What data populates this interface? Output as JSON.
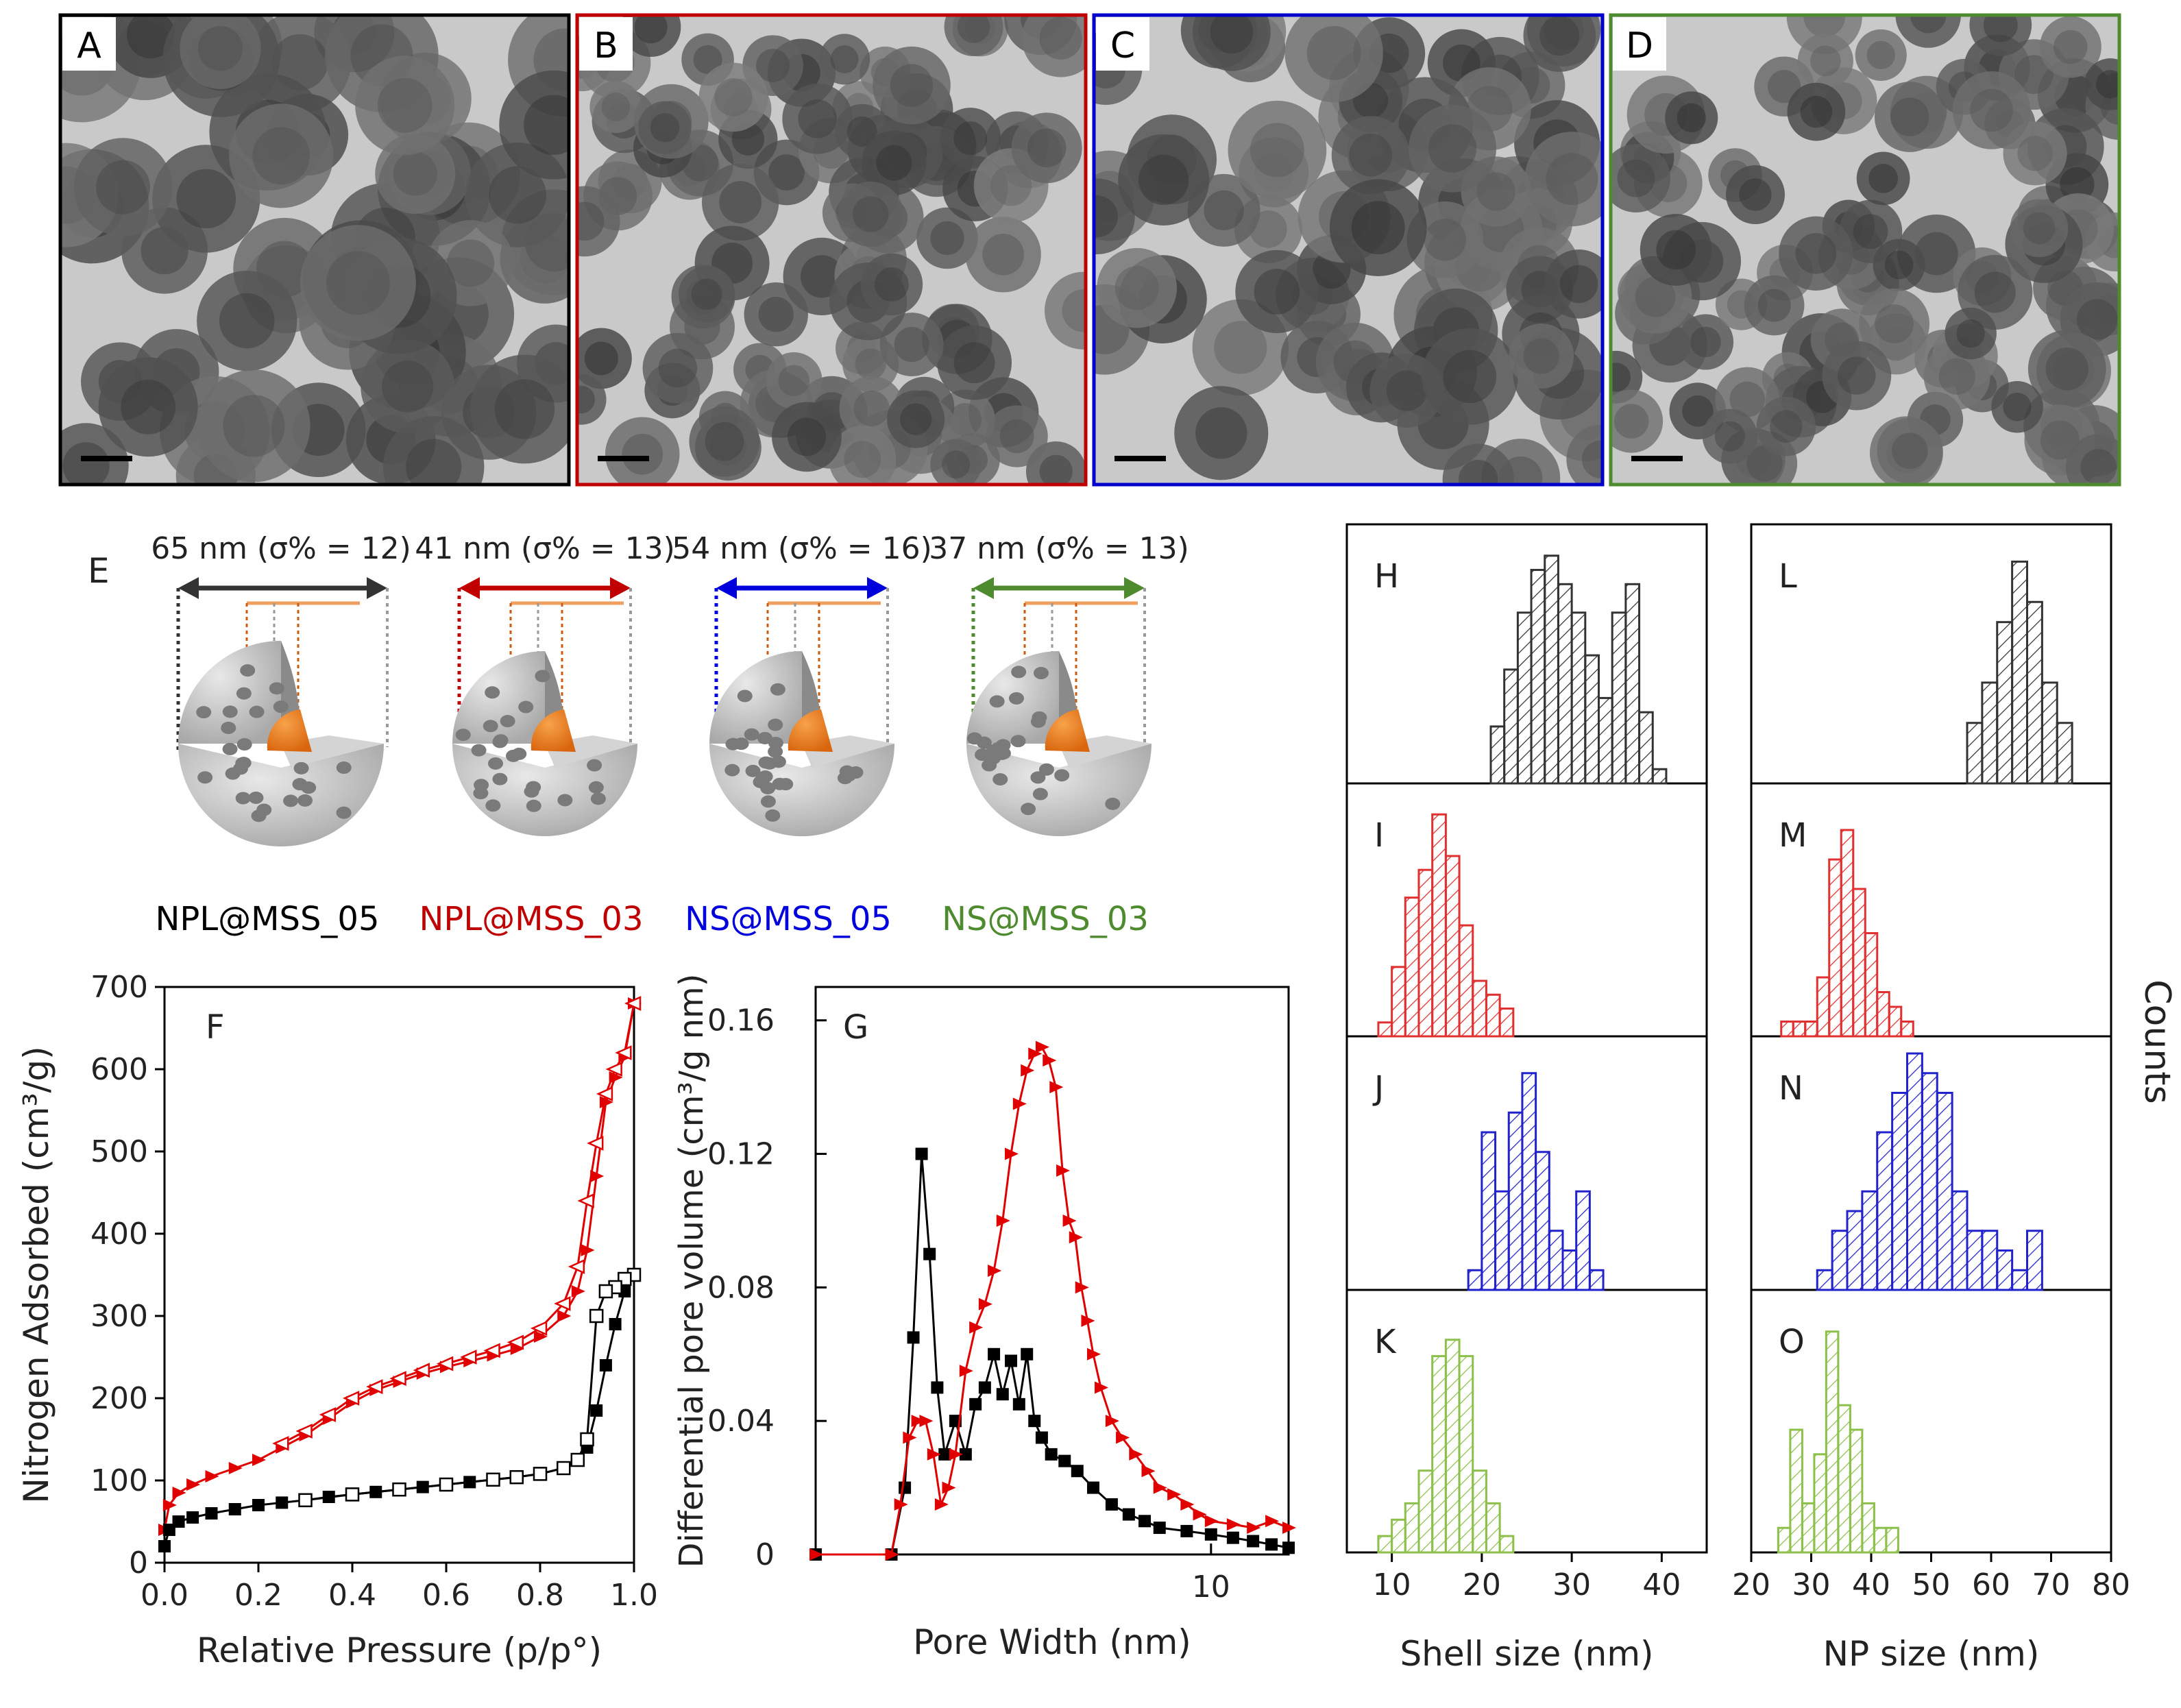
{
  "figure": {
    "tem_panels": [
      {
        "label": "A",
        "color": "#000000",
        "seed": 11,
        "style": "large"
      },
      {
        "label": "B",
        "color": "#c00000",
        "seed": 23,
        "style": "small"
      },
      {
        "label": "C",
        "color": "#0000cc",
        "seed": 37,
        "style": "medium"
      },
      {
        "label": "D",
        "color": "#4e8a2e",
        "seed": 51,
        "style": "small"
      }
    ],
    "panel_e": {
      "label": "E",
      "particles": [
        {
          "size_label": "65 nm (σ% = 12)",
          "color": "#333333",
          "name": "NPL@MSS_05",
          "name_color": "#000000"
        },
        {
          "size_label": "41 nm (σ% = 13)",
          "color": "#c00000",
          "name": "NPL@MSS_03",
          "name_color": "#c00000"
        },
        {
          "size_label": "54 nm (σ% = 16)",
          "color": "#0000dd",
          "name": "NS@MSS_05",
          "name_color": "#0000dd"
        },
        {
          "size_label": "37 nm (σ% = 13)",
          "color": "#4e8a2e",
          "name": "NS@MSS_03",
          "name_color": "#4e8a2e"
        }
      ]
    }
  },
  "chart_data": [
    {
      "type": "line",
      "panel": "F",
      "title": "F",
      "xlabel": "Relative Pressure (p/p°)",
      "ylabel": "Nitrogen Adsorbed (cm³/g)",
      "xlim": [
        0,
        1
      ],
      "ylim": [
        0,
        700
      ],
      "xticks": [
        "0.0",
        "0.2",
        "0.4",
        "0.6",
        "0.8",
        "1.0"
      ],
      "yticks": [
        "0",
        "100",
        "200",
        "300",
        "400",
        "500",
        "600",
        "700"
      ],
      "series": [
        {
          "name": "NPL@MSS_03 adsorption",
          "color": "#e00000",
          "marker": "right-triangle-filled",
          "x": [
            0.0,
            0.01,
            0.03,
            0.06,
            0.1,
            0.15,
            0.2,
            0.25,
            0.3,
            0.35,
            0.4,
            0.45,
            0.5,
            0.55,
            0.6,
            0.65,
            0.7,
            0.75,
            0.8,
            0.85,
            0.88,
            0.9,
            0.92,
            0.94,
            0.96,
            0.98,
            1.0
          ],
          "y": [
            40,
            70,
            85,
            95,
            105,
            115,
            125,
            140,
            155,
            175,
            195,
            210,
            220,
            230,
            238,
            245,
            252,
            260,
            275,
            300,
            330,
            380,
            470,
            560,
            590,
            615,
            680
          ]
        },
        {
          "name": "NPL@MSS_03 desorption",
          "color": "#e00000",
          "marker": "left-triangle-open",
          "x": [
            1.0,
            0.98,
            0.96,
            0.94,
            0.92,
            0.9,
            0.88,
            0.85,
            0.8,
            0.75,
            0.7,
            0.65,
            0.6,
            0.55,
            0.5,
            0.45,
            0.4,
            0.35,
            0.3,
            0.25
          ],
          "y": [
            680,
            620,
            600,
            570,
            510,
            440,
            360,
            315,
            285,
            268,
            258,
            250,
            242,
            234,
            224,
            214,
            200,
            180,
            160,
            145
          ]
        },
        {
          "name": "NPL@MSS_05 adsorption",
          "color": "#000000",
          "marker": "square-filled",
          "x": [
            0.0,
            0.01,
            0.03,
            0.06,
            0.1,
            0.15,
            0.2,
            0.25,
            0.3,
            0.35,
            0.4,
            0.45,
            0.5,
            0.55,
            0.6,
            0.65,
            0.7,
            0.75,
            0.8,
            0.85,
            0.88,
            0.9,
            0.92,
            0.94,
            0.96,
            0.98,
            1.0
          ],
          "y": [
            20,
            40,
            50,
            55,
            60,
            65,
            70,
            73,
            76,
            80,
            83,
            86,
            89,
            92,
            95,
            98,
            101,
            104,
            108,
            115,
            125,
            140,
            185,
            240,
            290,
            330,
            350
          ]
        },
        {
          "name": "NPL@MSS_05 desorption",
          "color": "#000000",
          "marker": "square-open",
          "x": [
            1.0,
            0.98,
            0.96,
            0.94,
            0.92,
            0.9,
            0.88,
            0.85,
            0.8,
            0.75,
            0.7,
            0.6,
            0.5,
            0.4,
            0.3
          ],
          "y": [
            350,
            345,
            335,
            330,
            300,
            150,
            125,
            115,
            108,
            104,
            101,
            95,
            89,
            83,
            76
          ]
        }
      ]
    },
    {
      "type": "line",
      "panel": "G",
      "title": "G",
      "xlabel": "Pore Width (nm)",
      "ylabel": "Differential pore volume (cm³/g nm)",
      "xscale": "log",
      "xlim": [
        1.8,
        14
      ],
      "ylim": [
        0,
        0.17
      ],
      "xticks": [
        "10"
      ],
      "yticks": [
        "0",
        "0.04",
        "0.08",
        "0.12",
        "0.16"
      ],
      "series": [
        {
          "name": "NPL@MSS_05",
          "color": "#000000",
          "marker": "square-filled",
          "x": [
            1.8,
            2.5,
            2.65,
            2.75,
            2.85,
            2.95,
            3.05,
            3.15,
            3.3,
            3.45,
            3.6,
            3.75,
            3.9,
            4.05,
            4.2,
            4.35,
            4.5,
            4.65,
            4.8,
            5.0,
            5.3,
            5.6,
            6.0,
            6.5,
            7.0,
            7.5,
            8.0,
            9.0,
            10.0,
            11.0,
            12.0,
            13.0,
            14.0
          ],
          "y": [
            0.0,
            0.0,
            0.02,
            0.065,
            0.12,
            0.09,
            0.05,
            0.03,
            0.04,
            0.03,
            0.045,
            0.05,
            0.06,
            0.048,
            0.058,
            0.045,
            0.06,
            0.04,
            0.035,
            0.03,
            0.028,
            0.025,
            0.02,
            0.015,
            0.012,
            0.01,
            0.008,
            0.007,
            0.006,
            0.005,
            0.004,
            0.003,
            0.002
          ]
        },
        {
          "name": "NPL@MSS_03",
          "color": "#e00000",
          "marker": "right-triangle-filled",
          "x": [
            1.8,
            2.5,
            2.6,
            2.7,
            2.8,
            2.9,
            3.0,
            3.1,
            3.2,
            3.3,
            3.45,
            3.6,
            3.75,
            3.9,
            4.05,
            4.2,
            4.35,
            4.5,
            4.65,
            4.8,
            4.95,
            5.1,
            5.25,
            5.4,
            5.55,
            5.7,
            5.85,
            6.0,
            6.2,
            6.5,
            6.8,
            7.2,
            7.6,
            8.0,
            8.5,
            9.0,
            9.5,
            10.0,
            11.0,
            12.0,
            13.0,
            14.0
          ],
          "y": [
            0.0,
            0.0,
            0.015,
            0.035,
            0.04,
            0.04,
            0.03,
            0.015,
            0.02,
            0.03,
            0.055,
            0.068,
            0.075,
            0.085,
            0.1,
            0.12,
            0.135,
            0.145,
            0.15,
            0.152,
            0.148,
            0.14,
            0.115,
            0.1,
            0.095,
            0.08,
            0.07,
            0.06,
            0.05,
            0.04,
            0.035,
            0.03,
            0.025,
            0.02,
            0.018,
            0.015,
            0.012,
            0.01,
            0.009,
            0.008,
            0.01,
            0.008
          ]
        }
      ]
    },
    {
      "type": "bar",
      "panel": "H-O",
      "column_left": {
        "xlabel": "Shell size (nm)",
        "xlim": [
          5,
          45
        ],
        "xticks": [
          "10",
          "20",
          "30",
          "40"
        ]
      },
      "column_right": {
        "xlabel": "NP size (nm)",
        "xlim": [
          20,
          80
        ],
        "xticks": [
          "20",
          "30",
          "40",
          "50",
          "60",
          "70",
          "80"
        ]
      },
      "ylabel": "Counts",
      "histograms": [
        {
          "label": "H",
          "color": "#333333",
          "start": 21,
          "width": 1.5,
          "values": [
            4,
            8,
            12,
            15,
            16,
            14,
            12,
            9,
            6,
            12,
            14,
            5,
            1
          ],
          "max": 17
        },
        {
          "label": "I",
          "color": "#e03030",
          "start": 8.5,
          "width": 1.5,
          "values": [
            1,
            5,
            10,
            12,
            16,
            13,
            8,
            4,
            3,
            2
          ],
          "max": 17
        },
        {
          "label": "J",
          "color": "#2222cc",
          "start": 18.5,
          "width": 1.5,
          "values": [
            1,
            8,
            5,
            9,
            11,
            7,
            3,
            2,
            5,
            1
          ],
          "max": 12
        },
        {
          "label": "K",
          "color": "#8cc04a",
          "start": 8.5,
          "width": 1.5,
          "values": [
            1,
            2,
            3,
            5,
            12,
            13,
            12,
            5,
            3,
            1
          ],
          "max": 15
        },
        {
          "label": "L",
          "color": "#333333",
          "start": 56,
          "width": 2.5,
          "values": [
            3,
            5,
            8,
            11,
            9,
            5,
            3
          ],
          "max": 12
        },
        {
          "label": "M",
          "color": "#e03030",
          "start": 25,
          "width": 2,
          "values": [
            1,
            1,
            1,
            4,
            12,
            14,
            10,
            7,
            3,
            2,
            1
          ],
          "max": 16
        },
        {
          "label": "N",
          "color": "#2222cc",
          "start": 31,
          "width": 2.5,
          "values": [
            1,
            3,
            4,
            5,
            8,
            10,
            12,
            11,
            10,
            5,
            3,
            3,
            2,
            1,
            3
          ],
          "max": 12
        },
        {
          "label": "O",
          "color": "#8cc04a",
          "start": 24.5,
          "width": 2,
          "values": [
            1,
            5,
            2,
            4,
            9,
            6,
            5,
            2,
            1,
            1
          ],
          "max": 10
        }
      ]
    }
  ]
}
